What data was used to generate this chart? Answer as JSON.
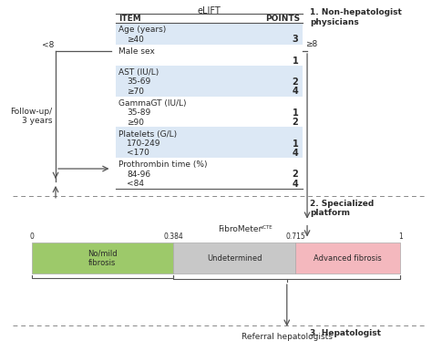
{
  "title_elift": "eLIFT",
  "header_item": "ITEM",
  "header_points": "POINTS",
  "rows": [
    {
      "label": "Age (years)",
      "subs": [
        [
          "≥40",
          "3"
        ]
      ],
      "shaded": true
    },
    {
      "label": "Male sex",
      "subs": [
        [
          null,
          "1"
        ]
      ],
      "shaded": false
    },
    {
      "label": "AST (IU/L)",
      "subs": [
        [
          "35-69",
          "2"
        ],
        [
          "≥70",
          "4"
        ]
      ],
      "shaded": true
    },
    {
      "label": "GammaGT (IU/L)",
      "subs": [
        [
          "35-89",
          "1"
        ],
        [
          "≥90",
          "2"
        ]
      ],
      "shaded": false
    },
    {
      "label": "Platelets (G/L)",
      "subs": [
        [
          "170-249",
          "1"
        ],
        [
          "<170",
          "4"
        ]
      ],
      "shaded": true
    },
    {
      "label": "Prothrombin time (%)",
      "subs": [
        [
          "84-96",
          "2"
        ],
        [
          "<84",
          "4"
        ]
      ],
      "shaded": false
    }
  ],
  "label_less8": "<8",
  "label_geq8": "≥8",
  "label_followup": "Follow-up/\n3 years",
  "label_step1": "1. Non-hepatologist\nphysicians",
  "label_step2": "2. Specialized\nplatform",
  "label_step3": "3. Hepatologist",
  "label_fibrometer": "FibroMeter",
  "label_fibrometer_sup": "vCTE",
  "bar_values": [
    0.0,
    0.384,
    0.715,
    1.0
  ],
  "bar_labels": [
    "0",
    "0.384",
    "0.715",
    "1"
  ],
  "bar_colors": [
    "#9dc96a",
    "#c8c8c8",
    "#f4b8be"
  ],
  "bar_texts": [
    "No/mild\nfibrosis",
    "Undetermined",
    "Advanced fibrosis"
  ],
  "label_referral": "Referral hepatologists",
  "bg_color": "#ffffff",
  "table_shade_color": "#dce8f5",
  "text_color": "#2a2a2a",
  "arrow_color": "#555555",
  "dashed_line_color": "#888888"
}
